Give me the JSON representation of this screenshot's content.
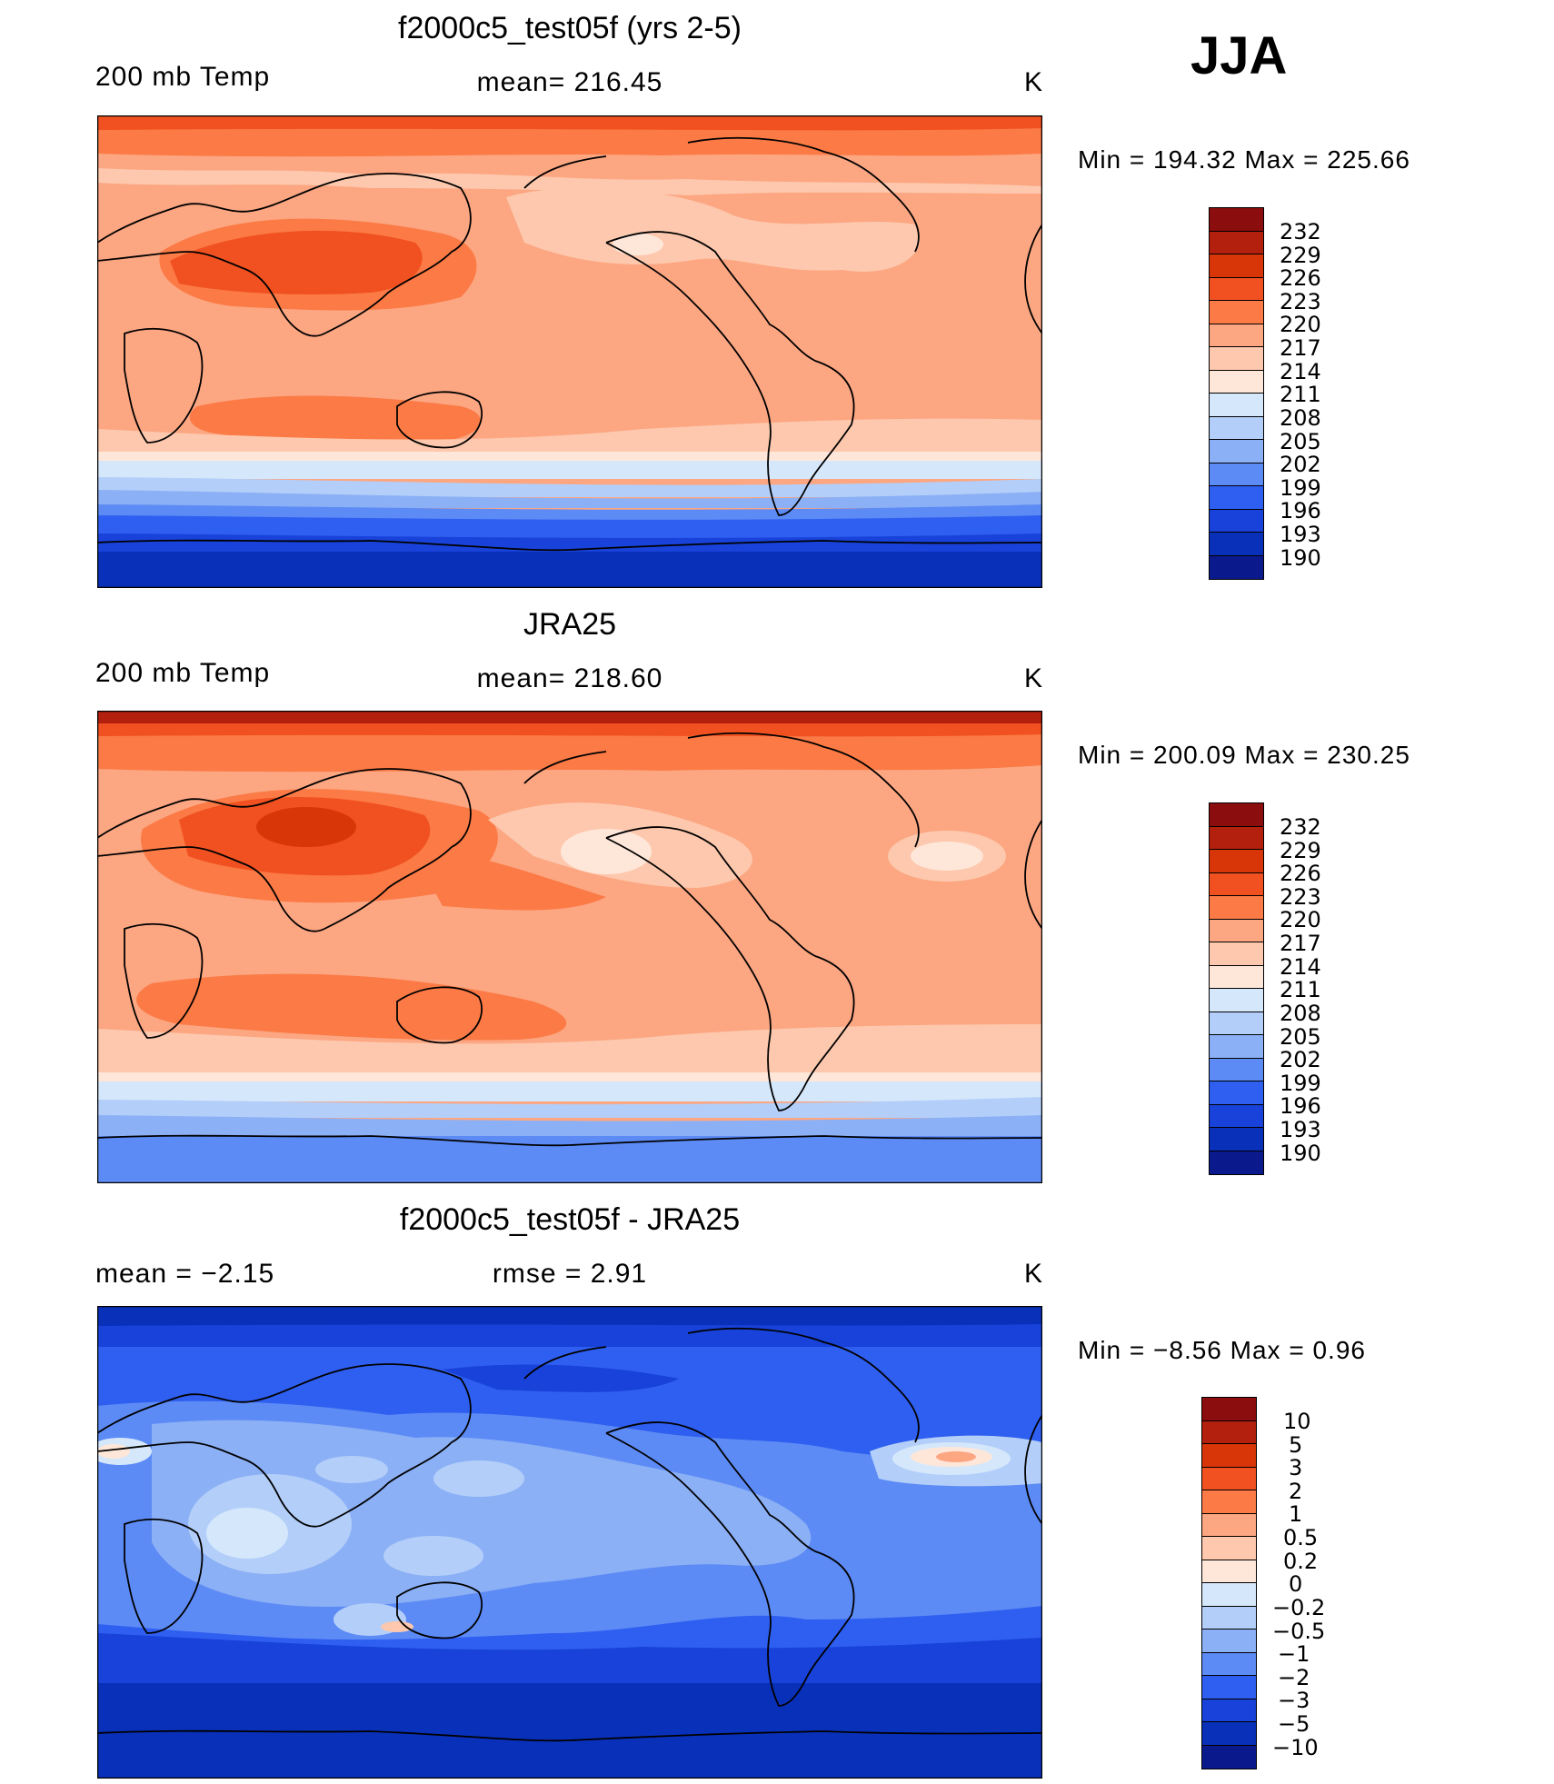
{
  "season": "JJA",
  "panels": [
    {
      "title": "f2000c5_test05f (yrs 2-5)",
      "left_label": "200 mb Temp",
      "center_label": "mean= 216.45",
      "units": "K",
      "minmax": "Min  =  194.32  Max  =  225.66",
      "colorbar_labels": [
        "232",
        "229",
        "226",
        "223",
        "220",
        "217",
        "214",
        "211",
        "208",
        "205",
        "202",
        "199",
        "196",
        "193",
        "190"
      ],
      "colorbar_colors": [
        "#8c0d0d",
        "#b3200e",
        "#d83609",
        "#f15120",
        "#fb7a45",
        "#fca682",
        "#fdc8ad",
        "#fee7d9",
        "#d5e7fb",
        "#b3cff9",
        "#8cb0f5",
        "#5d8bf5",
        "#2f5ff0",
        "#1842d9",
        "#0930b8",
        "#0a1a8c"
      ]
    },
    {
      "title": "JRA25",
      "left_label": "200 mb Temp",
      "center_label": "mean= 218.60",
      "units": "K",
      "minmax": "Min  =  200.09  Max  =  230.25",
      "colorbar_labels": [
        "232",
        "229",
        "226",
        "223",
        "220",
        "217",
        "214",
        "211",
        "208",
        "205",
        "202",
        "199",
        "196",
        "193",
        "190"
      ],
      "colorbar_colors": [
        "#8c0d0d",
        "#b3200e",
        "#d83609",
        "#f15120",
        "#fb7a45",
        "#fca682",
        "#fdc8ad",
        "#fee7d9",
        "#d5e7fb",
        "#b3cff9",
        "#8cb0f5",
        "#5d8bf5",
        "#2f5ff0",
        "#1842d9",
        "#0930b8",
        "#0a1a8c"
      ]
    },
    {
      "title": "f2000c5_test05f - JRA25",
      "left_label": "mean  =     −2.15",
      "center_label": "rmse  =     2.91",
      "units": "K",
      "minmax": "Min  =    −8.56  Max  =      0.96",
      "colorbar_labels": [
        "10",
        "5",
        "3",
        "2",
        "1",
        "0.5",
        "0.2",
        "0",
        "−0.2",
        "−0.5",
        "−1",
        "−2",
        "−3",
        "−5",
        "−10"
      ],
      "colorbar_colors": [
        "#8c0d0d",
        "#b3200e",
        "#d83609",
        "#f15120",
        "#fb7a45",
        "#fca682",
        "#fdc8ad",
        "#fee7d9",
        "#d5e7fb",
        "#b3cff9",
        "#8cb0f5",
        "#5d8bf5",
        "#2f5ff0",
        "#1842d9",
        "#0930b8",
        "#0a1a8c"
      ]
    }
  ]
}
